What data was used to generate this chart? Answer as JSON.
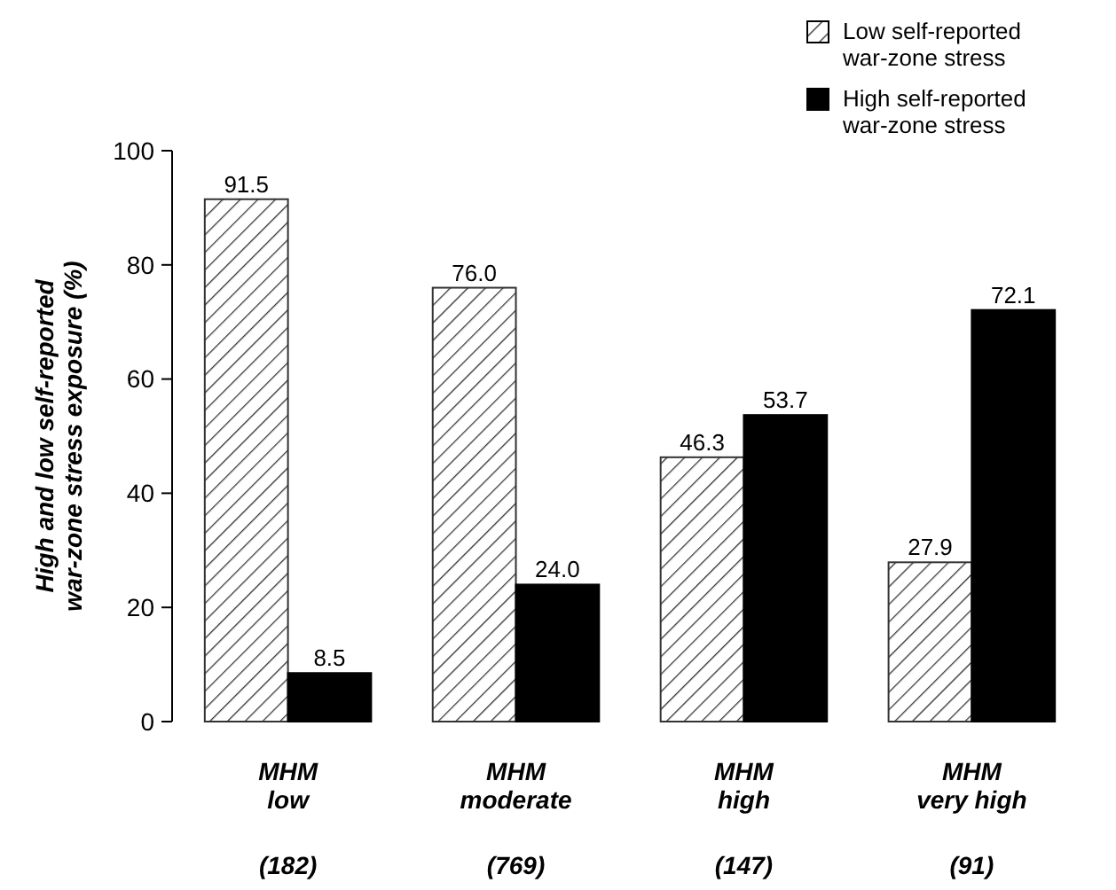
{
  "chart_data": {
    "type": "bar",
    "ylabel": "High and low self-reported war-zone stress exposure (%)",
    "categories": [
      "MHM low",
      "MHM moderate",
      "MHM high",
      "MHM very high"
    ],
    "annotations": [
      "(182)",
      "(769)",
      "(147)",
      "(91)"
    ],
    "series": [
      {
        "name": "Low self-reported war-zone stress",
        "color": "#333333",
        "values": [
          91.5,
          76.0,
          46.3,
          27.9
        ],
        "value_labels": [
          "91.5",
          "76.0",
          "46.3",
          "27.9"
        ]
      },
      {
        "name": "High self-reported war-zone stress",
        "color": "#000000",
        "values": [
          8.5,
          24.0,
          53.7,
          72.1
        ],
        "value_labels": [
          "8.5",
          "24.0",
          "53.7",
          "72.1"
        ]
      }
    ],
    "ylim": [
      0,
      100
    ],
    "yticks": [
      0,
      20,
      40,
      60,
      80,
      100
    ],
    "legend": "top right",
    "grid": false
  }
}
